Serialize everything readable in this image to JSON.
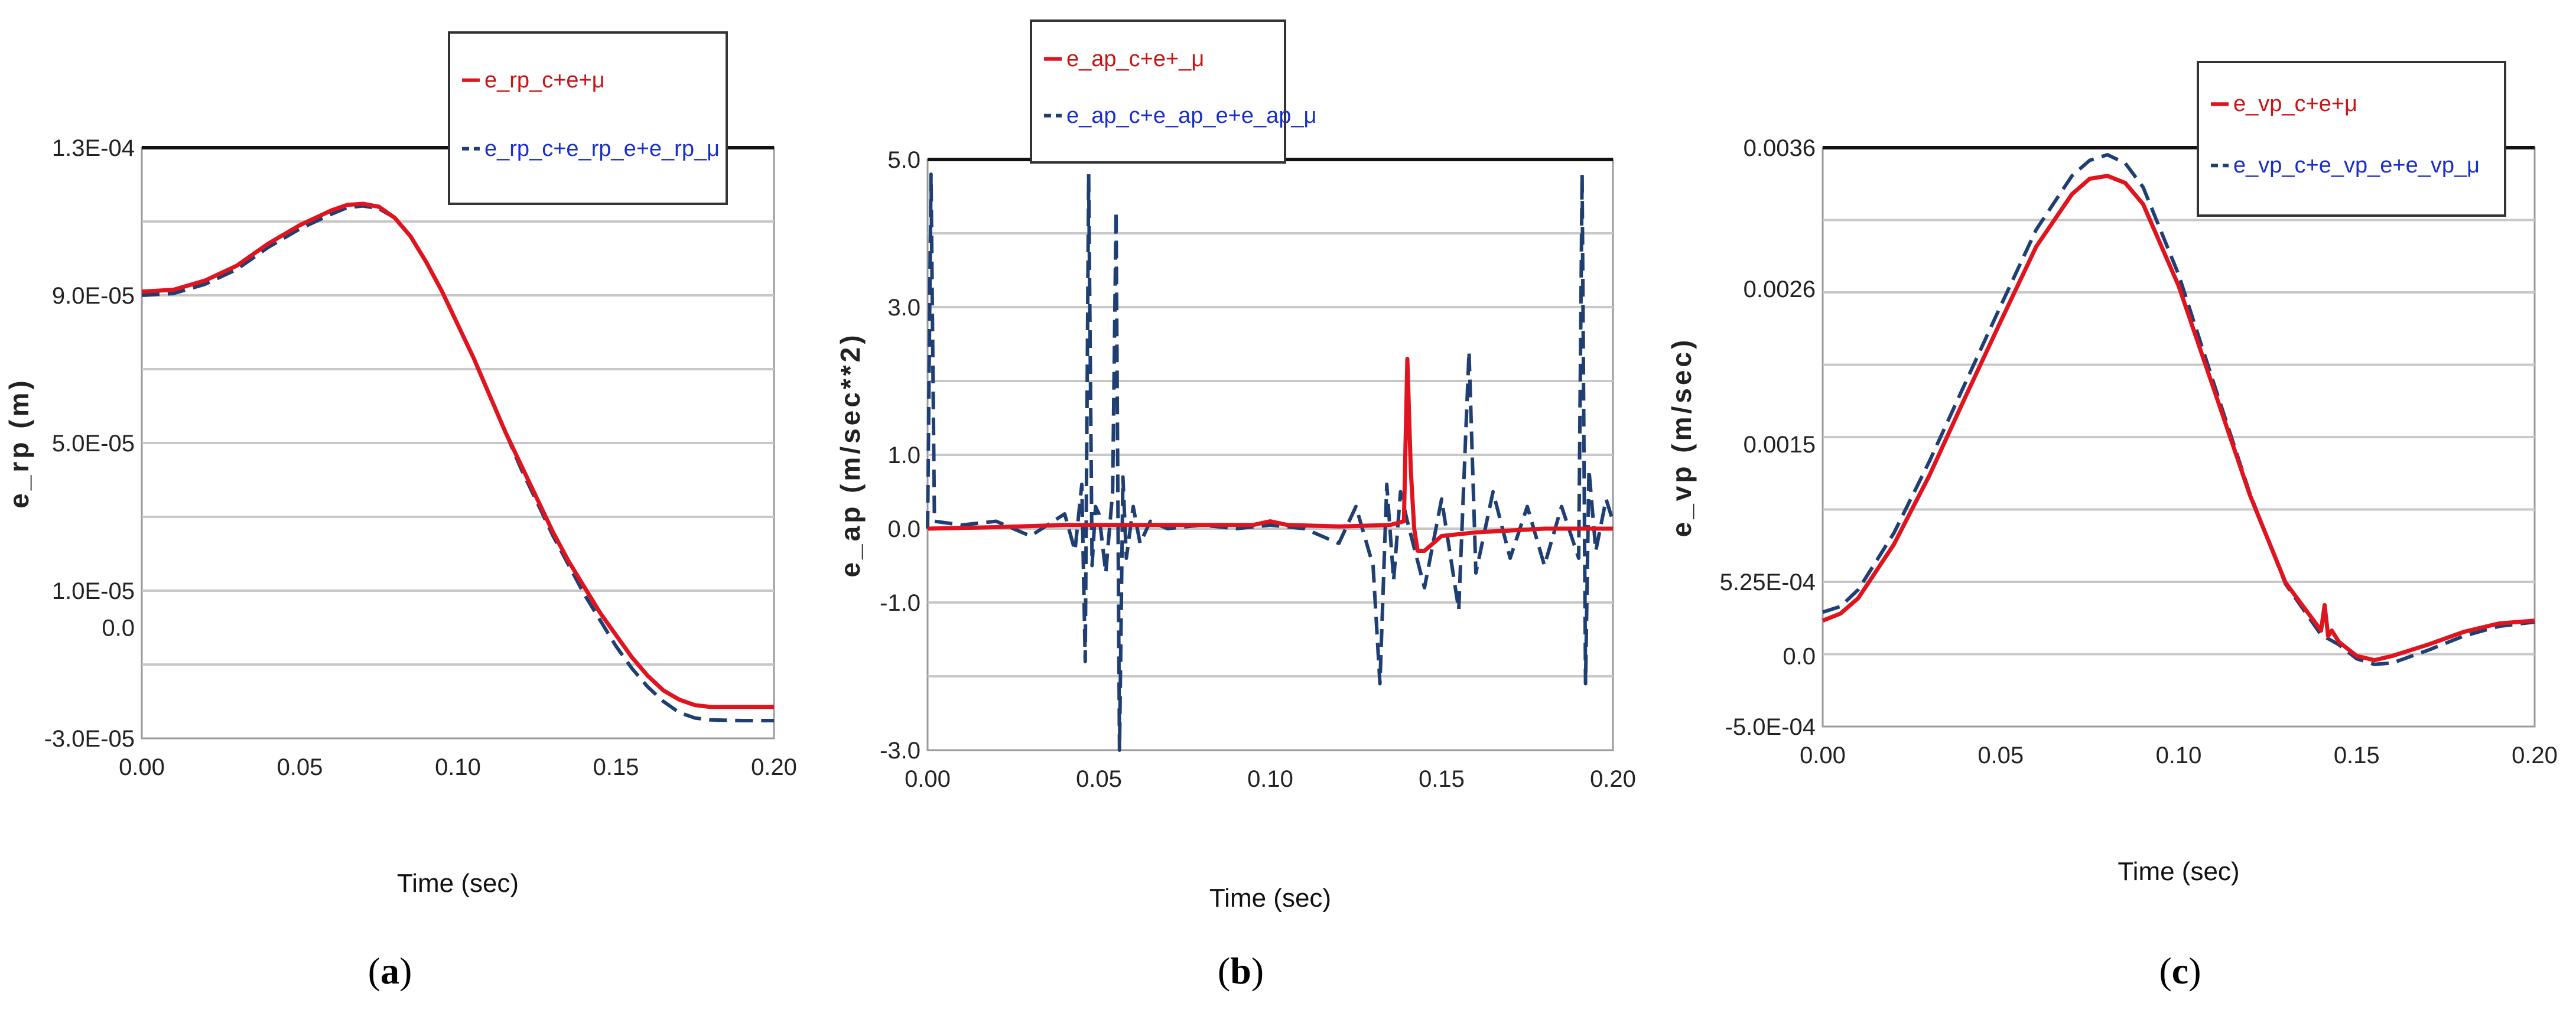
{
  "panel_labels": [
    {
      "open": "(",
      "letter": "a",
      "close": ")"
    },
    {
      "open": "(",
      "letter": "b",
      "close": ")"
    },
    {
      "open": "(",
      "letter": "c",
      "close": ")"
    }
  ],
  "colors": {
    "series_solid": "#e0141e",
    "series_dashed": "#1f3f73",
    "legend_text_solid": "#c81414",
    "legend_text_dashed": "#1a2ec8",
    "grid": "#c8c8c8"
  },
  "chart_data": [
    {
      "type": "line",
      "panel": "a",
      "xlabel": "Time (sec)",
      "ylabel": "e_rp (m)",
      "xlim": [
        0,
        0.2
      ],
      "ylim": [
        -3e-05,
        0.00013
      ],
      "x_ticks": [
        0,
        0.05,
        0.1,
        0.15,
        0.2
      ],
      "x_tick_labels": [
        "0.00",
        "0.05",
        "0.10",
        "0.15",
        "0.20"
      ],
      "y_ticks": [
        -3e-05,
        0.0,
        1e-05,
        5e-05,
        9e-05,
        0.00013
      ],
      "y_tick_labels": [
        "-3.0E-05",
        "0.0",
        "1.0E-05",
        "5.0E-05",
        "9.0E-05",
        "1.3E-04"
      ],
      "grid": true,
      "legend_position": "top-right, above plot",
      "series": [
        {
          "name": "e_rp_c+e+μ",
          "style": "solid",
          "x": [
            0,
            0.01,
            0.02,
            0.03,
            0.04,
            0.05,
            0.06,
            0.065,
            0.07,
            0.075,
            0.08,
            0.085,
            0.09,
            0.095,
            0.1,
            0.105,
            0.11,
            0.115,
            0.12,
            0.125,
            0.13,
            0.135,
            0.14,
            0.145,
            0.15,
            0.155,
            0.16,
            0.165,
            0.17,
            0.175,
            0.18,
            0.19,
            0.2
          ],
          "values": [
            9.1e-05,
            9.15e-05,
            9.4e-05,
            9.8e-05,
            0.000104,
            0.000109,
            0.000113,
            0.0001145,
            0.0001148,
            0.000114,
            0.000111,
            0.000106,
            9.9e-05,
            9.1e-05,
            8.2e-05,
            7.3e-05,
            6.3e-05,
            5.3e-05,
            4.4e-05,
            3.5e-05,
            2.6e-05,
            1.8e-05,
            1.1e-05,
            4e-06,
            -2e-06,
            -8e-06,
            -1.3e-05,
            -1.7e-05,
            -1.95e-05,
            -2.1e-05,
            -2.15e-05,
            -2.15e-05,
            -2.15e-05
          ]
        },
        {
          "name": "e_rp_c+e_rp_e+e_rp_μ",
          "style": "dashed",
          "x": [
            0,
            0.01,
            0.02,
            0.03,
            0.04,
            0.05,
            0.06,
            0.065,
            0.07,
            0.075,
            0.08,
            0.085,
            0.09,
            0.095,
            0.1,
            0.105,
            0.11,
            0.115,
            0.12,
            0.125,
            0.13,
            0.135,
            0.14,
            0.145,
            0.15,
            0.155,
            0.16,
            0.165,
            0.17,
            0.175,
            0.18,
            0.19,
            0.2
          ],
          "values": [
            9e-05,
            9.05e-05,
            9.3e-05,
            9.7e-05,
            0.000103,
            0.000108,
            0.000112,
            0.0001138,
            0.0001142,
            0.0001135,
            0.000111,
            0.000106,
            9.9e-05,
            9.1e-05,
            8.2e-05,
            7.3e-05,
            6.3e-05,
            5.3e-05,
            4.3e-05,
            3.4e-05,
            2.5e-05,
            1.7e-05,
            9e-06,
            2e-06,
            -5e-06,
            -1.1e-05,
            -1.6e-05,
            -2e-05,
            -2.3e-05,
            -2.45e-05,
            -2.5e-05,
            -2.52e-05,
            -2.52e-05
          ]
        }
      ]
    },
    {
      "type": "line",
      "panel": "b",
      "xlabel": "Time (sec)",
      "ylabel": "e_ap (m/sec**2)",
      "xlim": [
        0,
        0.2
      ],
      "ylim": [
        -3.0,
        5.0
      ],
      "x_ticks": [
        0,
        0.05,
        0.1,
        0.15,
        0.2
      ],
      "x_tick_labels": [
        "0.00",
        "0.05",
        "0.10",
        "0.15",
        "0.20"
      ],
      "y_ticks": [
        -3.0,
        -1.0,
        0.0,
        1.0,
        3.0,
        5.0
      ],
      "y_tick_labels": [
        "-3.0",
        "-1.0",
        "0.0",
        "1.0",
        "3.0",
        "5.0"
      ],
      "grid": true,
      "legend_position": "top-left, above plot",
      "series": [
        {
          "name": "e_ap_c+e+_μ",
          "style": "solid",
          "x": [
            0,
            0.02,
            0.04,
            0.06,
            0.08,
            0.095,
            0.1,
            0.105,
            0.12,
            0.135,
            0.139,
            0.14,
            0.141,
            0.142,
            0.143,
            0.145,
            0.15,
            0.16,
            0.18,
            0.2
          ],
          "values": [
            0.0,
            0.02,
            0.05,
            0.05,
            0.05,
            0.05,
            0.1,
            0.05,
            0.03,
            0.05,
            0.1,
            2.3,
            0.8,
            0.0,
            -0.3,
            -0.3,
            -0.1,
            -0.05,
            0.0,
            0.0
          ]
        },
        {
          "name": "e_ap_c+e_ap_e+e_ap_μ",
          "style": "dashed",
          "x": [
            0,
            0.001,
            0.002,
            0.01,
            0.02,
            0.03,
            0.04,
            0.043,
            0.045,
            0.046,
            0.047,
            0.048,
            0.049,
            0.05,
            0.052,
            0.054,
            0.055,
            0.056,
            0.057,
            0.058,
            0.06,
            0.062,
            0.065,
            0.07,
            0.08,
            0.09,
            0.1,
            0.11,
            0.12,
            0.125,
            0.13,
            0.132,
            0.134,
            0.136,
            0.138,
            0.14,
            0.145,
            0.15,
            0.155,
            0.158,
            0.16,
            0.165,
            0.17,
            0.175,
            0.18,
            0.185,
            0.19,
            0.191,
            0.192,
            0.193,
            0.195,
            0.198,
            0.2
          ],
          "values": [
            0.0,
            4.8,
            0.1,
            0.05,
            0.1,
            -0.1,
            0.2,
            -0.3,
            0.6,
            -1.8,
            4.8,
            -0.5,
            0.3,
            0.2,
            -0.6,
            0.5,
            4.3,
            -3.0,
            0.7,
            -0.4,
            0.3,
            -0.2,
            0.1,
            0.0,
            0.05,
            0.0,
            0.05,
            0.0,
            -0.2,
            0.3,
            -0.5,
            -2.1,
            0.6,
            -0.7,
            0.5,
            0.1,
            -0.8,
            0.4,
            -1.1,
            2.4,
            -0.6,
            0.5,
            -0.4,
            0.3,
            -0.5,
            0.3,
            -0.4,
            4.8,
            -2.1,
            0.8,
            -0.3,
            0.4,
            0.1
          ]
        }
      ]
    },
    {
      "type": "line",
      "panel": "c",
      "xlabel": "Time (sec)",
      "ylabel": "e_vp (m/sec)",
      "xlim": [
        0,
        0.2
      ],
      "ylim": [
        -0.0005,
        0.0036
      ],
      "x_ticks": [
        0,
        0.05,
        0.1,
        0.15,
        0.2
      ],
      "x_tick_labels": [
        "0.00",
        "0.05",
        "0.10",
        "0.15",
        "0.20"
      ],
      "y_ticks": [
        -0.0005,
        0.0,
        0.000525,
        0.0015,
        0.0026,
        0.0036
      ],
      "y_tick_labels": [
        "-5.0E-04",
        "0.0",
        "5.25E-04",
        "0.0015",
        "0.0026",
        "0.0036"
      ],
      "grid": true,
      "legend_position": "top-right, above plot",
      "series": [
        {
          "name": "e_vp_c+e+μ",
          "style": "solid",
          "x": [
            0,
            0.005,
            0.01,
            0.02,
            0.03,
            0.04,
            0.05,
            0.06,
            0.07,
            0.075,
            0.08,
            0.085,
            0.09,
            0.1,
            0.11,
            0.12,
            0.13,
            0.14,
            0.141,
            0.142,
            0.143,
            0.145,
            0.15,
            0.155,
            0.16,
            0.17,
            0.18,
            0.19,
            0.2
          ],
          "values": [
            0.00025,
            0.0003,
            0.00041,
            0.00079,
            0.00128,
            0.00183,
            0.00237,
            0.0029,
            0.00327,
            0.00338,
            0.0034,
            0.00335,
            0.0032,
            0.00262,
            0.00188,
            0.00114,
            0.00052,
            0.00018,
            0.00036,
            0.00014,
            0.00018,
            0.0001,
            0.0,
            -3e-05,
            0.0,
            8e-05,
            0.00017,
            0.00023,
            0.00025
          ]
        },
        {
          "name": "e_vp_c+e_vp_e+e_vp_μ",
          "style": "dashed",
          "x": [
            0,
            0.005,
            0.01,
            0.02,
            0.03,
            0.04,
            0.05,
            0.06,
            0.07,
            0.075,
            0.08,
            0.085,
            0.09,
            0.1,
            0.11,
            0.12,
            0.13,
            0.14,
            0.145,
            0.15,
            0.155,
            0.16,
            0.17,
            0.18,
            0.19,
            0.2
          ],
          "values": [
            0.00031,
            0.00035,
            0.00047,
            0.00087,
            0.00138,
            0.00193,
            0.00248,
            0.00302,
            0.0034,
            0.00351,
            0.00355,
            0.00349,
            0.00332,
            0.0027,
            0.00192,
            0.00115,
            0.00051,
            0.00015,
            8e-05,
            -2e-05,
            -6e-05,
            -5e-05,
            4e-05,
            0.00014,
            0.00021,
            0.00024
          ]
        }
      ]
    }
  ]
}
